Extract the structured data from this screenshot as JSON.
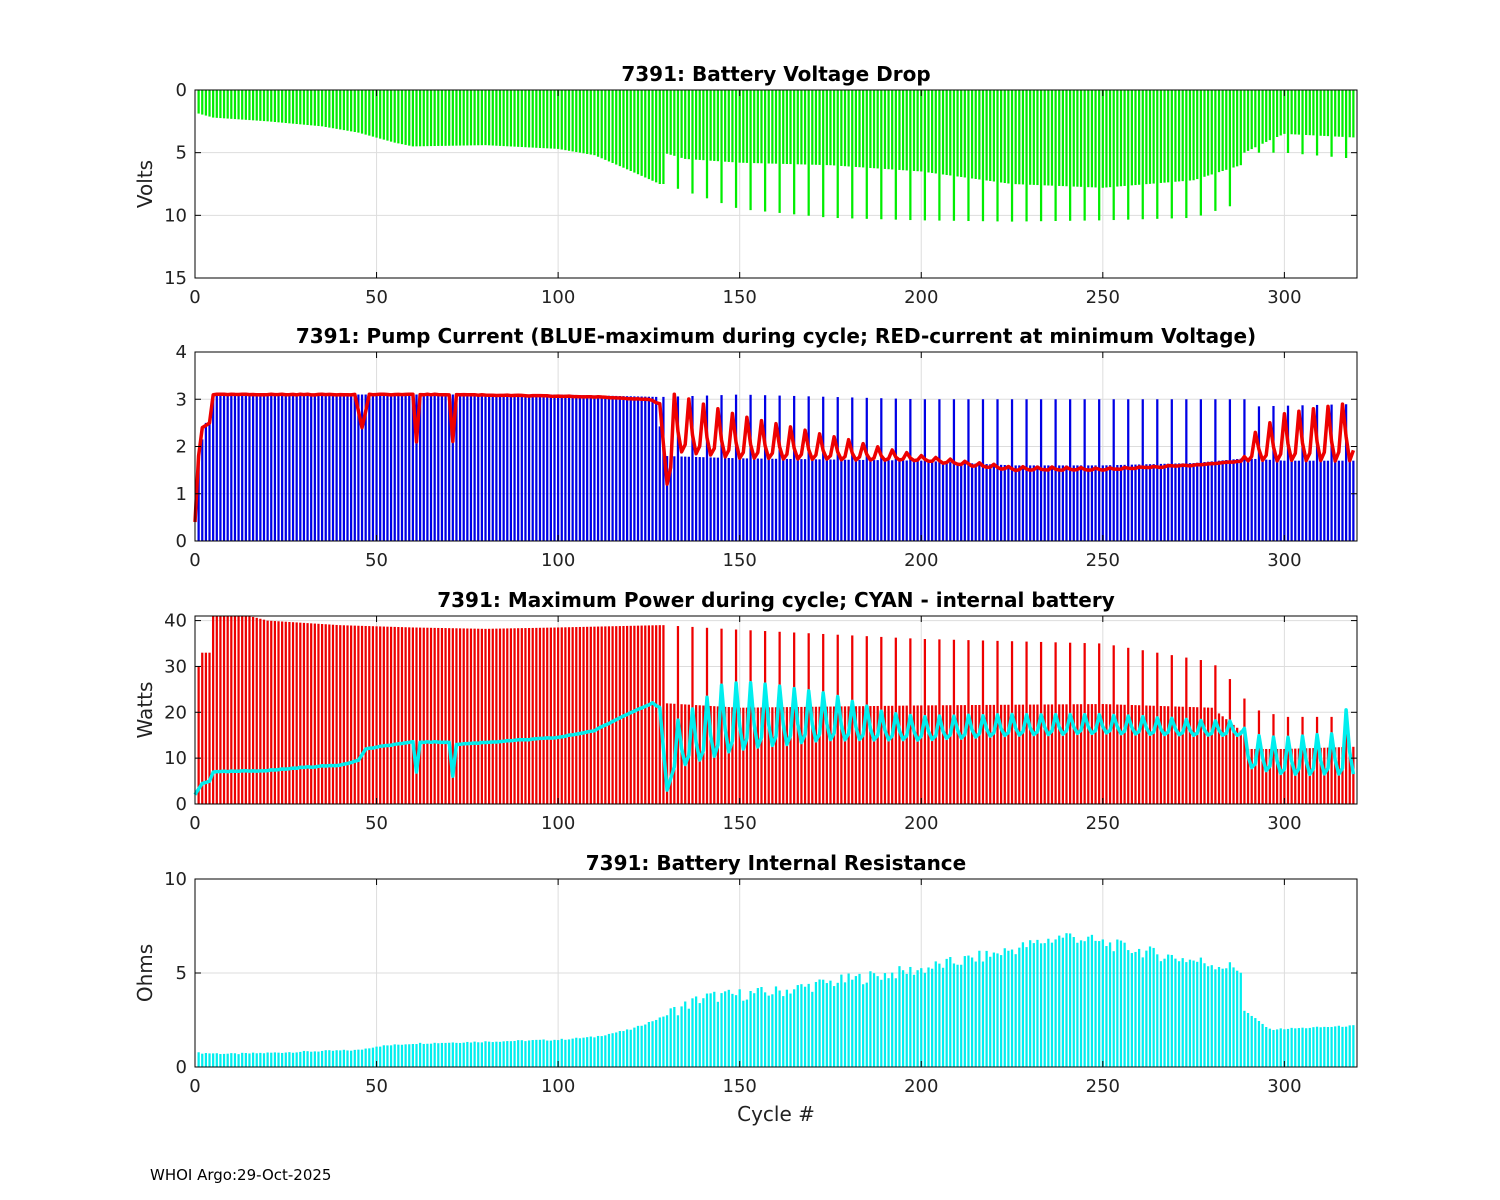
{
  "figure": {
    "footer": "WHOI Argo:29-Oct-2025",
    "x_label": "Cycle #",
    "xlim": [
      0,
      320
    ],
    "x_ticks": [
      0,
      50,
      100,
      150,
      200,
      250,
      300
    ]
  },
  "colors": {
    "green": "#00ee00",
    "blue": "#0000e6",
    "red": "#ee0000",
    "cyan": "#00eeee",
    "grid": "#dddddd",
    "axis": "#000000"
  },
  "chart_data": [
    {
      "id": "voltage",
      "type": "bar",
      "title": "7391: Battery Voltage Drop",
      "ylabel": "Volts",
      "ylim": [
        0,
        15
      ],
      "y_reversed": true,
      "y_ticks": [
        0,
        5,
        10,
        15
      ],
      "bar_color": "green",
      "base_profile": [
        [
          0,
          1.8
        ],
        [
          5,
          2.2
        ],
        [
          20,
          2.5
        ],
        [
          35,
          2.9
        ],
        [
          45,
          3.4
        ],
        [
          55,
          4.2
        ],
        [
          60,
          4.5
        ],
        [
          80,
          4.4
        ],
        [
          100,
          4.7
        ],
        [
          110,
          5.2
        ],
        [
          118,
          6.2
        ],
        [
          128,
          7.5
        ],
        [
          129,
          5.0
        ],
        [
          135,
          5.5
        ],
        [
          150,
          5.8
        ],
        [
          175,
          6.0
        ],
        [
          200,
          6.5
        ],
        [
          225,
          7.5
        ],
        [
          250,
          7.8
        ],
        [
          275,
          7.2
        ],
        [
          288,
          6.0
        ],
        [
          289,
          5.0
        ],
        [
          296,
          4.0
        ],
        [
          300,
          3.5
        ],
        [
          320,
          3.8
        ]
      ],
      "spike_profile": [
        [
          129,
          7.5
        ],
        [
          150,
          9.5
        ],
        [
          175,
          10.2
        ],
        [
          200,
          10.4
        ],
        [
          225,
          10.5
        ],
        [
          250,
          10.4
        ],
        [
          275,
          10.2
        ],
        [
          288,
          9.0
        ],
        [
          289,
          5.0
        ],
        [
          300,
          5.0
        ],
        [
          320,
          5.5
        ]
      ],
      "spike_start": 129,
      "spike_every": 4,
      "spike_end": 320
    },
    {
      "id": "current",
      "type": "bar",
      "title": "7391: Pump Current (BLUE-maximum during cycle; RED-current at minimum Voltage)",
      "ylabel": "",
      "ylim": [
        0,
        4
      ],
      "y_ticks": [
        0,
        1,
        2,
        3,
        4
      ],
      "bar_color": "blue",
      "line_color": "red",
      "base_profile": [
        [
          0,
          0.5
        ],
        [
          1,
          1.8
        ],
        [
          3,
          2.5
        ],
        [
          4,
          2.5
        ],
        [
          5,
          3.1
        ],
        [
          50,
          3.1
        ],
        [
          100,
          3.1
        ],
        [
          127,
          3.05
        ],
        [
          129,
          1.8
        ],
        [
          150,
          1.75
        ],
        [
          200,
          1.7
        ],
        [
          225,
          1.6
        ],
        [
          250,
          1.6
        ],
        [
          275,
          1.65
        ],
        [
          289,
          1.75
        ],
        [
          300,
          1.7
        ],
        [
          320,
          1.7
        ]
      ],
      "spike_profile": [
        [
          129,
          3.05
        ],
        [
          150,
          3.1
        ],
        [
          200,
          3.0
        ],
        [
          250,
          3.0
        ],
        [
          289,
          3.0
        ],
        [
          293,
          2.85
        ],
        [
          320,
          2.9
        ]
      ],
      "spike_start": 129,
      "spike_every": 4,
      "spike_end": 320,
      "line_profile": [
        [
          0,
          0.4
        ],
        [
          1,
          1.8
        ],
        [
          2,
          2.4
        ],
        [
          4,
          2.5
        ],
        [
          5,
          3.1
        ],
        [
          44,
          3.1
        ],
        [
          46,
          2.4
        ],
        [
          48,
          3.1
        ],
        [
          60,
          3.1
        ],
        [
          61,
          2.1
        ],
        [
          62,
          3.1
        ],
        [
          70,
          3.1
        ],
        [
          71,
          2.1
        ],
        [
          72,
          3.1
        ],
        [
          110,
          3.05
        ],
        [
          125,
          3.0
        ],
        [
          128,
          2.9
        ],
        [
          130,
          1.2
        ],
        [
          132,
          1.9
        ],
        [
          150,
          1.75
        ],
        [
          200,
          1.7
        ],
        [
          225,
          1.5
        ],
        [
          250,
          1.5
        ],
        [
          275,
          1.6
        ],
        [
          289,
          1.7
        ],
        [
          320,
          1.7
        ]
      ],
      "line_spike_profile": [
        [
          132,
          1.2
        ],
        [
          150,
          0.9
        ],
        [
          175,
          0.5
        ],
        [
          190,
          0.25
        ],
        [
          200,
          0.1
        ],
        [
          288,
          0.0
        ],
        [
          290,
          0.5
        ],
        [
          300,
          1.0
        ],
        [
          316,
          1.2
        ],
        [
          317,
          1.45
        ]
      ],
      "line_spike_period": 4
    },
    {
      "id": "power",
      "type": "bar",
      "title": "7391: Maximum Power during cycle; CYAN - internal battery",
      "ylabel": "Watts",
      "ylim": [
        0,
        41
      ],
      "y_ticks": [
        0,
        10,
        20,
        30,
        40
      ],
      "bar_color": "red",
      "line_color": "cyan",
      "base_profile": [
        [
          0,
          27
        ],
        [
          2,
          33
        ],
        [
          4,
          33
        ],
        [
          5,
          41
        ],
        [
          15,
          41
        ],
        [
          20,
          40
        ],
        [
          40,
          39
        ],
        [
          60,
          38.5
        ],
        [
          80,
          38.2
        ],
        [
          100,
          38.5
        ],
        [
          128,
          39
        ],
        [
          129,
          22
        ],
        [
          150,
          21
        ],
        [
          200,
          21.5
        ],
        [
          250,
          21.8
        ],
        [
          280,
          21
        ],
        [
          288,
          16
        ],
        [
          290,
          12
        ],
        [
          300,
          12
        ],
        [
          320,
          12.5
        ]
      ],
      "spike_profile": [
        [
          129,
          39
        ],
        [
          150,
          38
        ],
        [
          200,
          36
        ],
        [
          250,
          35
        ],
        [
          280,
          31
        ],
        [
          288,
          25
        ],
        [
          290,
          21
        ],
        [
          300,
          19
        ],
        [
          320,
          19
        ]
      ],
      "spike_start": 129,
      "spike_every": 4,
      "spike_end": 320,
      "line_profile": [
        [
          0,
          2
        ],
        [
          2,
          4.5
        ],
        [
          4,
          5
        ],
        [
          5,
          7
        ],
        [
          20,
          7.3
        ],
        [
          30,
          8
        ],
        [
          40,
          8.5
        ],
        [
          45,
          9.5
        ],
        [
          47,
          12
        ],
        [
          55,
          13
        ],
        [
          60,
          13.5
        ],
        [
          61,
          7
        ],
        [
          62,
          13.5
        ],
        [
          70,
          13.5
        ],
        [
          71,
          6
        ],
        [
          72,
          13
        ],
        [
          100,
          14.5
        ],
        [
          110,
          16
        ],
        [
          120,
          20
        ],
        [
          126,
          22
        ],
        [
          128,
          21
        ],
        [
          130,
          3
        ],
        [
          132,
          8
        ],
        [
          150,
          12
        ],
        [
          175,
          14
        ],
        [
          200,
          14
        ],
        [
          225,
          15
        ],
        [
          250,
          15.5
        ],
        [
          275,
          15
        ],
        [
          288,
          15
        ],
        [
          290,
          8
        ],
        [
          300,
          6.5
        ],
        [
          320,
          6.5
        ]
      ],
      "line_spike_profile": [
        [
          133,
          10
        ],
        [
          145,
          15
        ],
        [
          155,
          14
        ],
        [
          175,
          10
        ],
        [
          190,
          6
        ],
        [
          200,
          5
        ],
        [
          250,
          4
        ],
        [
          288,
          3
        ],
        [
          290,
          7
        ],
        [
          300,
          8
        ],
        [
          316,
          9
        ],
        [
          317,
          14
        ]
      ],
      "line_spike_period": 4
    },
    {
      "id": "resistance",
      "type": "bar",
      "title": "7391: Battery Internal Resistance",
      "ylabel": "Ohms",
      "ylim": [
        0,
        10
      ],
      "y_ticks": [
        0,
        5,
        10
      ],
      "bar_color": "cyan",
      "base_profile": [
        [
          0,
          0.9
        ],
        [
          1,
          0.75
        ],
        [
          10,
          0.7
        ],
        [
          20,
          0.75
        ],
        [
          35,
          0.85
        ],
        [
          45,
          0.9
        ],
        [
          50,
          1.1
        ],
        [
          60,
          1.25
        ],
        [
          80,
          1.35
        ],
        [
          100,
          1.45
        ],
        [
          110,
          1.6
        ],
        [
          120,
          2.0
        ],
        [
          128,
          2.6
        ],
        [
          132,
          3.0
        ],
        [
          140,
          3.7
        ],
        [
          160,
          4.0
        ],
        [
          175,
          4.5
        ],
        [
          200,
          5.2
        ],
        [
          220,
          6.0
        ],
        [
          230,
          6.5
        ],
        [
          240,
          7.0
        ],
        [
          250,
          6.6
        ],
        [
          265,
          6.0
        ],
        [
          280,
          5.5
        ],
        [
          288,
          5.2
        ],
        [
          289,
          3.0
        ],
        [
          296,
          2.0
        ],
        [
          320,
          2.2
        ]
      ],
      "jitter": 0.35,
      "jitter_start": 130,
      "jitter_end": 288
    }
  ]
}
